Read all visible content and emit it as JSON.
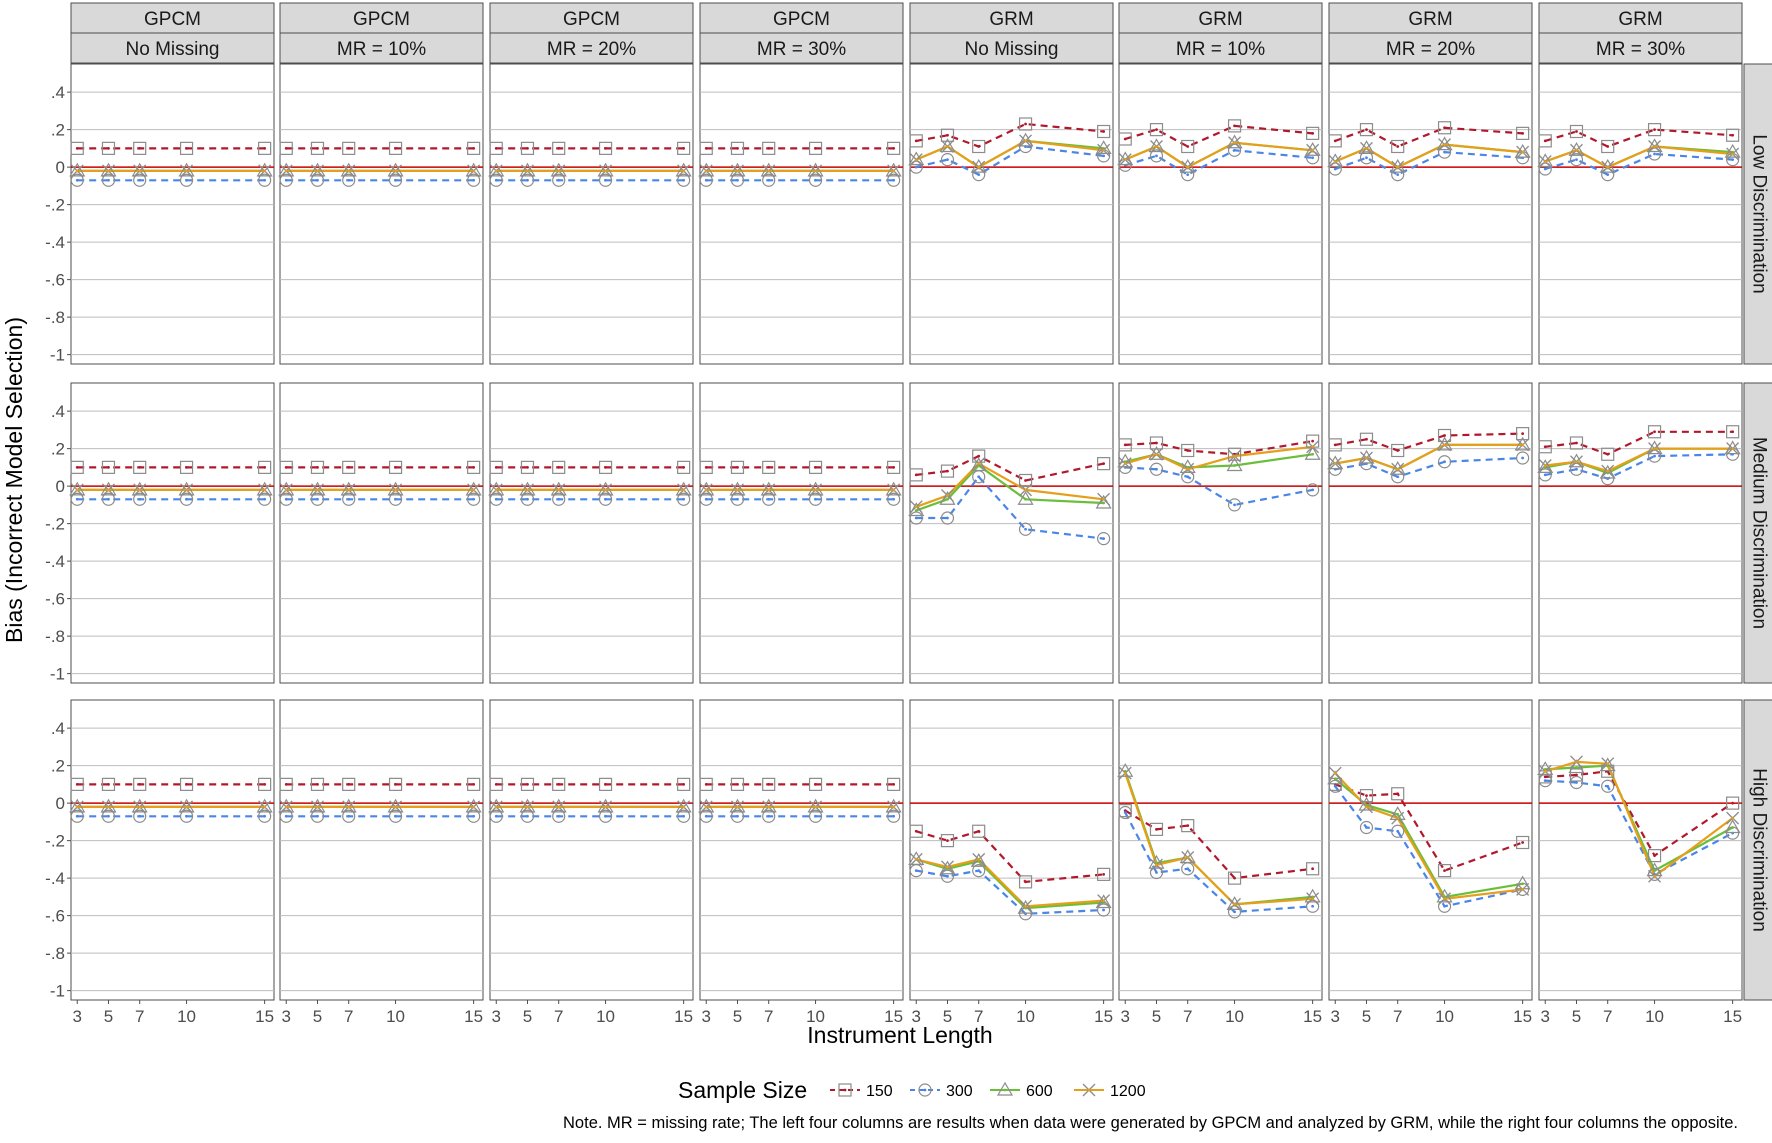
{
  "chart_data": {
    "type": "line",
    "ylabel": "Bias (Incorrect Model Selection)",
    "xlabel": "Instrument Length",
    "x": [
      3,
      5,
      7,
      10,
      15
    ],
    "x_tick_labels": [
      "3",
      "5",
      "7",
      "10",
      "15"
    ],
    "ylim": [
      -1.05,
      0.55
    ],
    "y_ticks": [
      0.4,
      0.2,
      0,
      -0.2,
      -0.4,
      -0.6,
      -0.8,
      -1
    ],
    "y_tick_labels": [
      ".4",
      ".2",
      "0",
      "-.2",
      "-.4",
      "-.6",
      "-.8",
      "-1"
    ],
    "reference_line": 0,
    "reference_color": "#cc0000",
    "grid": true,
    "legend": {
      "title": "Sample Size",
      "position": "bottom",
      "entries": [
        {
          "label": "150",
          "color": "#b2182b",
          "dash": "dashed",
          "marker": "square"
        },
        {
          "label": "300",
          "color": "#4a86e8",
          "dash": "dashed",
          "marker": "circle"
        },
        {
          "label": "600",
          "color": "#6abf3a",
          "dash": "solid",
          "marker": "triangle"
        },
        {
          "label": "1200",
          "color": "#e69f1a",
          "dash": "solid",
          "marker": "x"
        }
      ]
    },
    "col_strips": [
      {
        "top": "GPCM",
        "bottom": "No Missing"
      },
      {
        "top": "GPCM",
        "bottom": "MR = 10%"
      },
      {
        "top": "GPCM",
        "bottom": "MR = 20%"
      },
      {
        "top": "GPCM",
        "bottom": "MR = 30%"
      },
      {
        "top": "GRM",
        "bottom": "No Missing"
      },
      {
        "top": "GRM",
        "bottom": "MR = 10%"
      },
      {
        "top": "GRM",
        "bottom": "MR = 20%"
      },
      {
        "top": "GRM",
        "bottom": "MR = 30%"
      }
    ],
    "row_strips": [
      "Low Discrimination",
      "Medium Discrimination",
      "High Discrimination"
    ],
    "panels": [
      [
        {
          "150": [
            0.1,
            0.1,
            0.1,
            0.1,
            0.1
          ],
          "300": [
            -0.07,
            -0.07,
            -0.07,
            -0.07,
            -0.07
          ],
          "600": [
            -0.02,
            -0.02,
            -0.02,
            -0.02,
            -0.02
          ],
          "1200": [
            -0.02,
            -0.02,
            -0.02,
            -0.02,
            -0.02
          ]
        },
        {
          "150": [
            0.1,
            0.1,
            0.1,
            0.1,
            0.1
          ],
          "300": [
            -0.07,
            -0.07,
            -0.07,
            -0.07,
            -0.07
          ],
          "600": [
            -0.02,
            -0.02,
            -0.02,
            -0.02,
            -0.02
          ],
          "1200": [
            -0.02,
            -0.02,
            -0.02,
            -0.02,
            -0.02
          ]
        },
        {
          "150": [
            0.1,
            0.1,
            0.1,
            0.1,
            0.1
          ],
          "300": [
            -0.07,
            -0.07,
            -0.07,
            -0.07,
            -0.07
          ],
          "600": [
            -0.02,
            -0.02,
            -0.02,
            -0.02,
            -0.02
          ],
          "1200": [
            -0.02,
            -0.02,
            -0.02,
            -0.02,
            -0.02
          ]
        },
        {
          "150": [
            0.1,
            0.1,
            0.1,
            0.1,
            0.1
          ],
          "300": [
            -0.07,
            -0.07,
            -0.07,
            -0.07,
            -0.07
          ],
          "600": [
            -0.02,
            -0.02,
            -0.02,
            -0.02,
            -0.02
          ],
          "1200": [
            -0.02,
            -0.02,
            -0.02,
            -0.02,
            -0.02
          ]
        },
        {
          "150": [
            0.14,
            0.17,
            0.11,
            0.23,
            0.19
          ],
          "300": [
            0.0,
            0.04,
            -0.04,
            0.11,
            0.06
          ],
          "600": [
            0.04,
            0.11,
            0.0,
            0.14,
            0.1
          ],
          "1200": [
            0.04,
            0.11,
            0.0,
            0.14,
            0.09
          ]
        },
        {
          "150": [
            0.15,
            0.2,
            0.11,
            0.22,
            0.18
          ],
          "300": [
            0.01,
            0.06,
            -0.04,
            0.09,
            0.05
          ],
          "600": [
            0.04,
            0.11,
            0.0,
            0.13,
            0.09
          ],
          "1200": [
            0.04,
            0.11,
            0.0,
            0.13,
            0.09
          ]
        },
        {
          "150": [
            0.14,
            0.2,
            0.11,
            0.21,
            0.18
          ],
          "300": [
            -0.01,
            0.05,
            -0.04,
            0.08,
            0.05
          ],
          "600": [
            0.03,
            0.1,
            0.0,
            0.12,
            0.08
          ],
          "1200": [
            0.03,
            0.1,
            0.0,
            0.12,
            0.08
          ]
        },
        {
          "150": [
            0.14,
            0.19,
            0.11,
            0.2,
            0.17
          ],
          "300": [
            -0.01,
            0.04,
            -0.04,
            0.07,
            0.04
          ],
          "600": [
            0.03,
            0.09,
            0.0,
            0.11,
            0.08
          ],
          "1200": [
            0.03,
            0.09,
            0.0,
            0.11,
            0.07
          ]
        }
      ],
      [
        {
          "150": [
            0.1,
            0.1,
            0.1,
            0.1,
            0.1
          ],
          "300": [
            -0.07,
            -0.07,
            -0.07,
            -0.07,
            -0.07
          ],
          "600": [
            -0.02,
            -0.02,
            -0.02,
            -0.02,
            -0.02
          ],
          "1200": [
            -0.02,
            -0.02,
            -0.02,
            -0.02,
            -0.02
          ]
        },
        {
          "150": [
            0.1,
            0.1,
            0.1,
            0.1,
            0.1
          ],
          "300": [
            -0.07,
            -0.07,
            -0.07,
            -0.07,
            -0.07
          ],
          "600": [
            -0.02,
            -0.02,
            -0.02,
            -0.02,
            -0.02
          ],
          "1200": [
            -0.02,
            -0.02,
            -0.02,
            -0.02,
            -0.02
          ]
        },
        {
          "150": [
            0.1,
            0.1,
            0.1,
            0.1,
            0.1
          ],
          "300": [
            -0.07,
            -0.07,
            -0.07,
            -0.07,
            -0.07
          ],
          "600": [
            -0.02,
            -0.02,
            -0.02,
            -0.02,
            -0.02
          ],
          "1200": [
            -0.02,
            -0.02,
            -0.02,
            -0.02,
            -0.02
          ]
        },
        {
          "150": [
            0.1,
            0.1,
            0.1,
            0.1,
            0.1
          ],
          "300": [
            -0.07,
            -0.07,
            -0.07,
            -0.07,
            -0.07
          ],
          "600": [
            -0.02,
            -0.02,
            -0.02,
            -0.02,
            -0.02
          ],
          "1200": [
            -0.02,
            -0.02,
            -0.02,
            -0.02,
            -0.02
          ]
        },
        {
          "150": [
            0.06,
            0.08,
            0.16,
            0.03,
            0.12
          ],
          "300": [
            -0.17,
            -0.17,
            0.05,
            -0.23,
            -0.28
          ],
          "600": [
            -0.13,
            -0.07,
            0.11,
            -0.07,
            -0.09
          ],
          "1200": [
            -0.11,
            -0.05,
            0.12,
            -0.02,
            -0.07
          ]
        },
        {
          "150": [
            0.22,
            0.23,
            0.19,
            0.17,
            0.24
          ],
          "300": [
            0.1,
            0.09,
            0.05,
            -0.1,
            -0.02
          ],
          "600": [
            0.13,
            0.17,
            0.1,
            0.11,
            0.17
          ],
          "1200": [
            0.12,
            0.17,
            0.09,
            0.16,
            0.21
          ]
        },
        {
          "150": [
            0.22,
            0.25,
            0.19,
            0.27,
            0.28
          ],
          "300": [
            0.09,
            0.12,
            0.05,
            0.13,
            0.15
          ],
          "600": [
            0.12,
            0.15,
            0.09,
            0.22,
            0.22
          ],
          "1200": [
            0.12,
            0.15,
            0.09,
            0.22,
            0.22
          ]
        },
        {
          "150": [
            0.21,
            0.23,
            0.17,
            0.29,
            0.29
          ],
          "300": [
            0.06,
            0.09,
            0.04,
            0.16,
            0.17
          ],
          "600": [
            0.1,
            0.13,
            0.07,
            0.2,
            0.2
          ],
          "1200": [
            0.11,
            0.13,
            0.08,
            0.2,
            0.2
          ]
        }
      ],
      [
        {
          "150": [
            0.1,
            0.1,
            0.1,
            0.1,
            0.1
          ],
          "300": [
            -0.07,
            -0.07,
            -0.07,
            -0.07,
            -0.07
          ],
          "600": [
            -0.02,
            -0.02,
            -0.02,
            -0.02,
            -0.02
          ],
          "1200": [
            -0.02,
            -0.02,
            -0.02,
            -0.02,
            -0.02
          ]
        },
        {
          "150": [
            0.1,
            0.1,
            0.1,
            0.1,
            0.1
          ],
          "300": [
            -0.07,
            -0.07,
            -0.07,
            -0.07,
            -0.07
          ],
          "600": [
            -0.02,
            -0.02,
            -0.02,
            -0.02,
            -0.02
          ],
          "1200": [
            -0.02,
            -0.02,
            -0.02,
            -0.02,
            -0.02
          ]
        },
        {
          "150": [
            0.1,
            0.1,
            0.1,
            0.1,
            0.1
          ],
          "300": [
            -0.07,
            -0.07,
            -0.07,
            -0.07,
            -0.07
          ],
          "600": [
            -0.02,
            -0.02,
            -0.02,
            -0.02,
            -0.02
          ],
          "1200": [
            -0.02,
            -0.02,
            -0.02,
            -0.02,
            -0.02
          ]
        },
        {
          "150": [
            0.1,
            0.1,
            0.1,
            0.1,
            0.1
          ],
          "300": [
            -0.07,
            -0.07,
            -0.07,
            -0.07,
            -0.07
          ],
          "600": [
            -0.02,
            -0.02,
            -0.02,
            -0.02,
            -0.02
          ],
          "1200": [
            -0.02,
            -0.02,
            -0.02,
            -0.02,
            -0.02
          ]
        },
        {
          "150": [
            -0.15,
            -0.2,
            -0.15,
            -0.42,
            -0.38
          ],
          "300": [
            -0.36,
            -0.39,
            -0.36,
            -0.59,
            -0.57
          ],
          "600": [
            -0.3,
            -0.35,
            -0.31,
            -0.56,
            -0.53
          ],
          "1200": [
            -0.3,
            -0.34,
            -0.3,
            -0.55,
            -0.52
          ]
        },
        {
          "150": [
            -0.04,
            -0.14,
            -0.12,
            -0.4,
            -0.35
          ],
          "300": [
            -0.05,
            -0.37,
            -0.35,
            -0.58,
            -0.55
          ],
          "600": [
            0.17,
            -0.32,
            -0.29,
            -0.54,
            -0.5
          ],
          "1200": [
            0.16,
            -0.33,
            -0.29,
            -0.54,
            -0.51
          ]
        },
        {
          "150": [
            0.1,
            0.04,
            0.05,
            -0.36,
            -0.21
          ],
          "300": [
            0.09,
            -0.13,
            -0.15,
            -0.55,
            -0.46
          ],
          "600": [
            0.13,
            -0.01,
            -0.06,
            -0.5,
            -0.43
          ],
          "1200": [
            0.16,
            -0.02,
            -0.08,
            -0.51,
            -0.46
          ]
        },
        {
          "150": [
            0.14,
            0.15,
            0.17,
            -0.28,
            0.0
          ],
          "300": [
            0.12,
            0.11,
            0.09,
            -0.38,
            -0.16
          ],
          "600": [
            0.18,
            0.19,
            0.2,
            -0.36,
            -0.13
          ],
          "1200": [
            0.17,
            0.22,
            0.21,
            -0.39,
            -0.08
          ]
        }
      ]
    ]
  },
  "note": "Note. MR = missing rate; The left four columns are results when data were generated by GPCM and analyzed by GRM, while the right four columns the opposite."
}
